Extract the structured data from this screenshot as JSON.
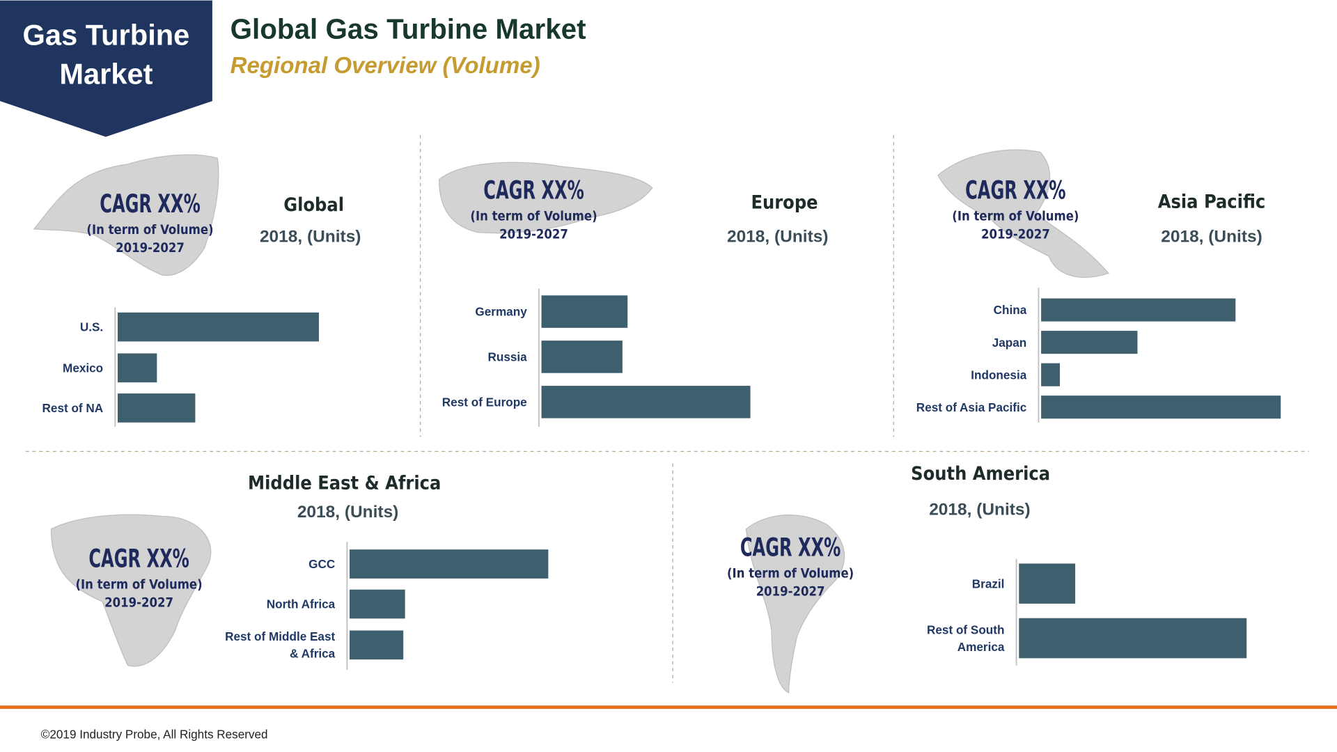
{
  "header": {
    "badge": "Gas Turbine Market",
    "title": "Global Gas Turbine Market",
    "subtitle": "Regional Overview (Volume)"
  },
  "chart_data": [
    {
      "type": "bar",
      "orientation": "horizontal",
      "title": "Global",
      "subtitle": "2018, (Units)",
      "annotations": [
        "CAGR XX%",
        "(In term of Volume)",
        "2019-2027"
      ],
      "categories": [
        "U.S.",
        "Mexico",
        "Rest of NA"
      ],
      "values": [
        236,
        46,
        91
      ],
      "color": "#3e5f6d",
      "xlim": [
        0,
        300
      ]
    },
    {
      "type": "bar",
      "orientation": "horizontal",
      "title": "Europe",
      "subtitle": "2018, (Units)",
      "annotations": [
        "CAGR XX%",
        "(In term of Volume)",
        "2019-2027"
      ],
      "categories": [
        "Germany",
        "Russia",
        "Rest of Europe"
      ],
      "values": [
        101,
        95,
        245
      ],
      "color": "#3e5f6d",
      "xlim": [
        0,
        300
      ]
    },
    {
      "type": "bar",
      "orientation": "horizontal",
      "title": "Asia Pacific",
      "subtitle": "2018, (Units)",
      "annotations": [
        "CAGR XX%",
        "(In term of Volume)",
        "2019-2027"
      ],
      "categories": [
        "China",
        "Japan",
        "Indonesia",
        "Rest of Asia Pacific"
      ],
      "values": [
        228,
        113,
        22,
        281
      ],
      "color": "#3e5f6d",
      "xlim": [
        0,
        300
      ]
    },
    {
      "type": "bar",
      "orientation": "horizontal",
      "title": "Middle East & Africa",
      "subtitle": "2018, (Units)",
      "annotations": [
        "CAGR XX%",
        "(In term of Volume)",
        "2019-2027"
      ],
      "categories": [
        "GCC",
        "North Africa",
        "Rest of Middle East & Africa"
      ],
      "values": [
        233,
        65,
        63
      ],
      "color": "#3e5f6d",
      "xlim": [
        0,
        300
      ]
    },
    {
      "type": "bar",
      "orientation": "horizontal",
      "title": "South America",
      "subtitle": "2018, (Units)",
      "annotations": [
        "CAGR XX%",
        "(In term of Volume)",
        "2019-2027"
      ],
      "categories": [
        "Brazil",
        "Rest of South America"
      ],
      "values": [
        66,
        267
      ],
      "color": "#3e5f6d",
      "xlim": [
        0,
        300
      ]
    }
  ],
  "footer": "©2019 Industry Probe, All Rights Reserved"
}
